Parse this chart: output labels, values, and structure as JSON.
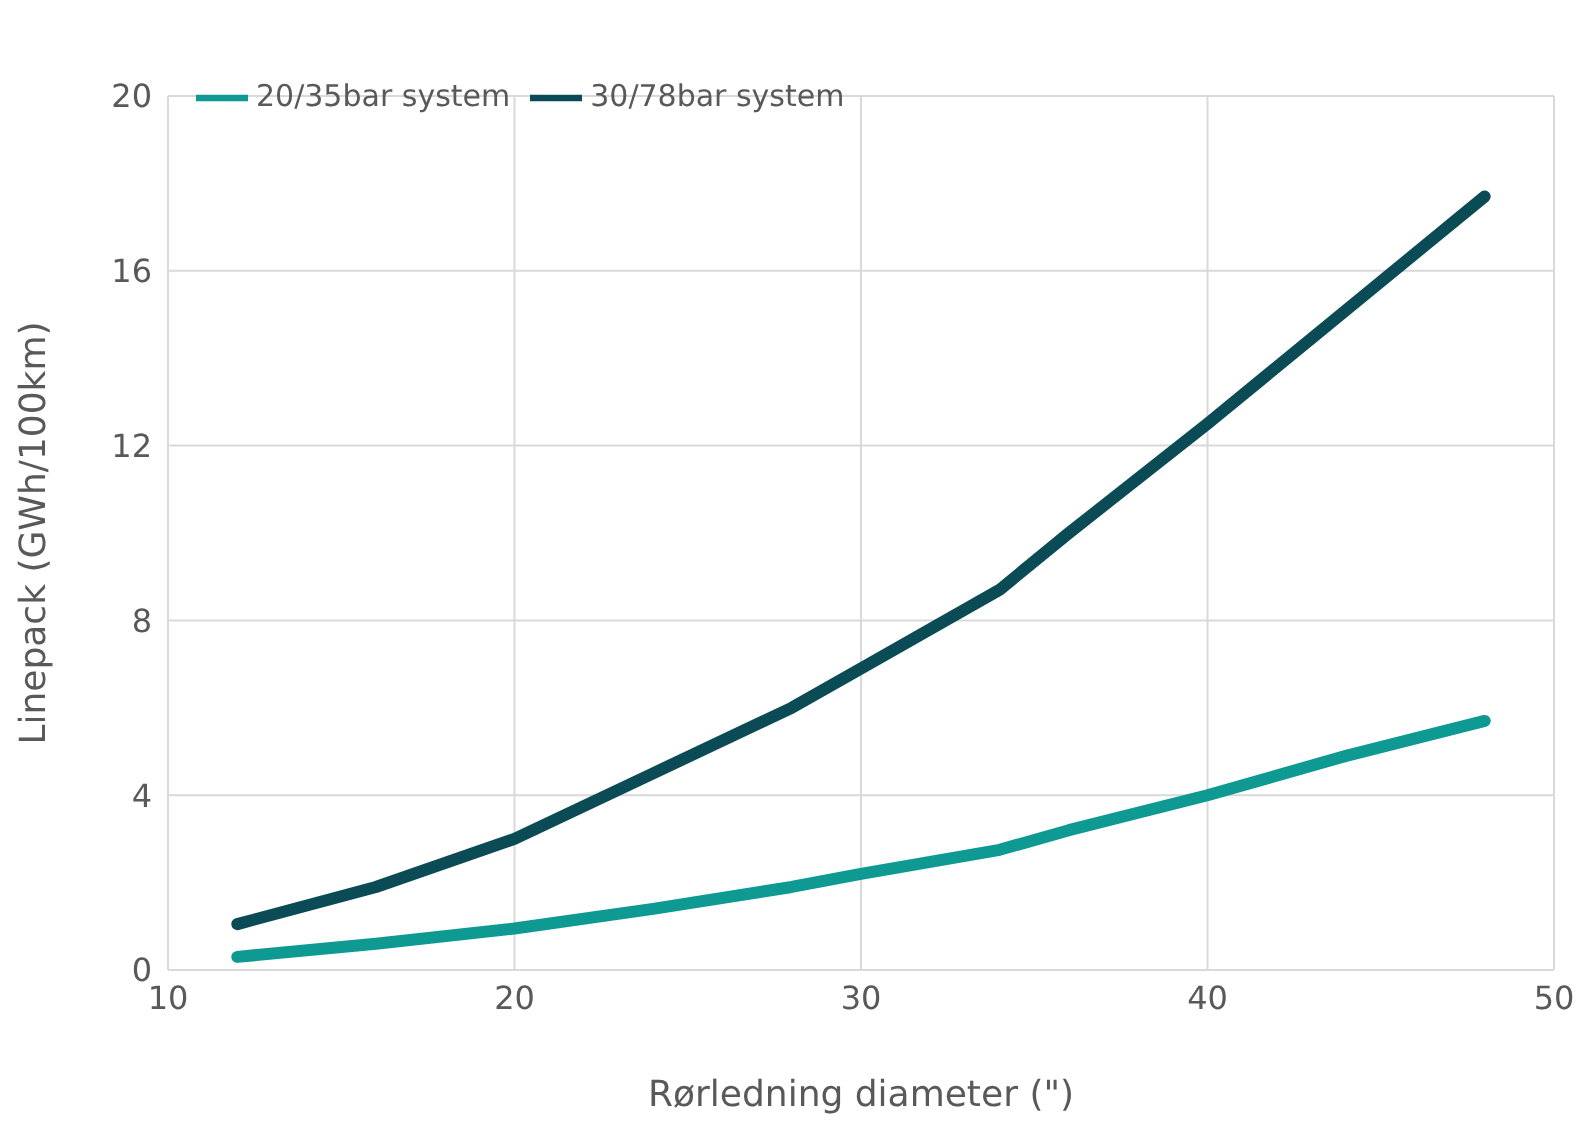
{
  "chart_data": {
    "type": "line",
    "xlabel": "Rørledning diameter (\")",
    "ylabel": "Linepack (GWh/100km)",
    "x": [
      12,
      16,
      20,
      24,
      28,
      30,
      34,
      36,
      40,
      44,
      48
    ],
    "series": [
      {
        "name": "20/35bar system",
        "color": "#0e9a93",
        "values": [
          0.3,
          0.6,
          0.95,
          1.4,
          1.9,
          2.2,
          2.75,
          3.2,
          4.0,
          4.9,
          5.7
        ]
      },
      {
        "name": "30/78bar system",
        "color": "#0b4b55",
        "values": [
          1.05,
          1.9,
          3.0,
          4.5,
          6.0,
          6.9,
          8.7,
          10.0,
          12.5,
          15.1,
          17.7
        ]
      }
    ],
    "xlim": [
      10,
      50
    ],
    "xticks": [
      10,
      20,
      30,
      40,
      50
    ],
    "ylim": [
      0,
      20
    ],
    "yticks": [
      0,
      4,
      8,
      12,
      16,
      20
    ],
    "grid": true,
    "legend": "top left",
    "marker": "none",
    "line_style": "solid"
  }
}
